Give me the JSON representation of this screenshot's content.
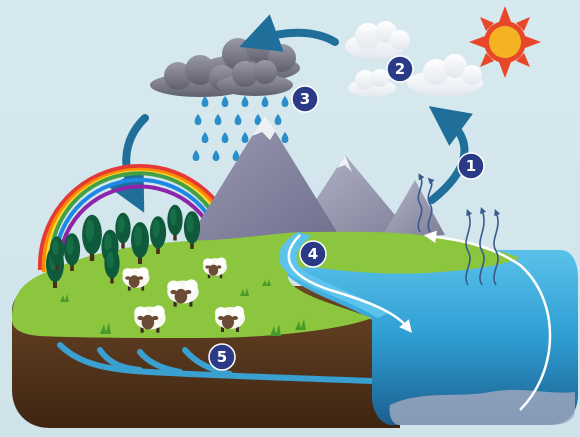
{
  "diagram": {
    "steps": [
      {
        "number": "1"
      },
      {
        "number": "2"
      },
      {
        "number": "3"
      },
      {
        "number": "4"
      },
      {
        "number": "5"
      }
    ]
  },
  "colors": {
    "background": "#d2e6ec",
    "badge": "#2b3a86",
    "arrow": "#1f6f9a",
    "grass": "#8cc63f",
    "soil": "#5a3a1e",
    "water": "#2fa6d8",
    "sun": "#e8472a",
    "mountain": "#8a8aa6"
  }
}
